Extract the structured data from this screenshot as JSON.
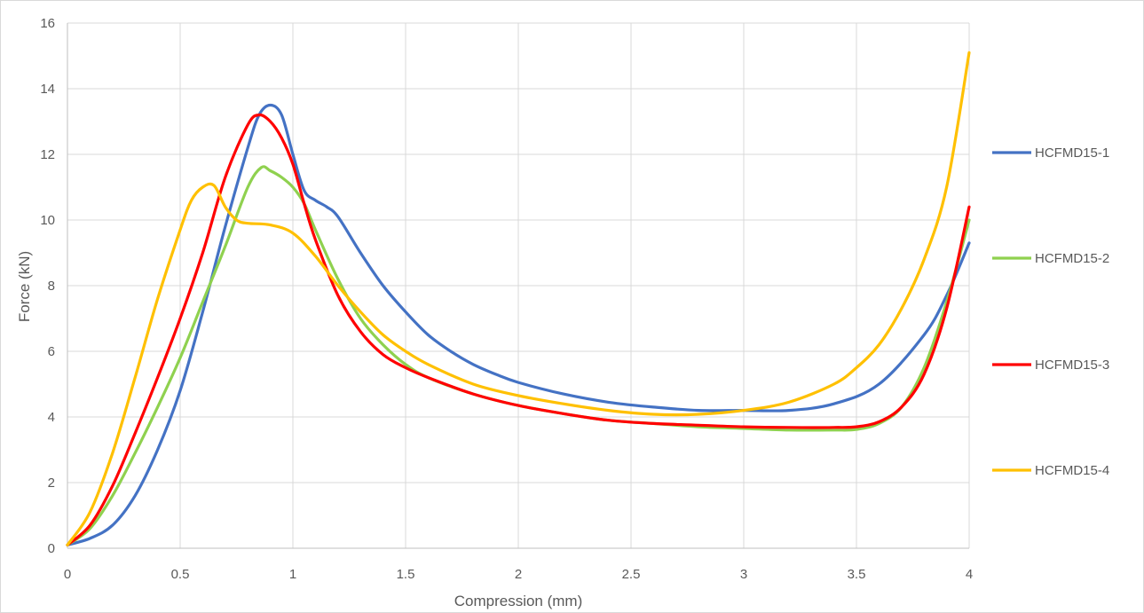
{
  "chart_data": {
    "type": "line",
    "title": "",
    "xlabel": "Compression (mm)",
    "ylabel": "Force (kN)",
    "xlim": [
      0,
      4
    ],
    "ylim": [
      0,
      16
    ],
    "xticks": [
      0,
      0.5,
      1,
      1.5,
      2,
      2.5,
      3,
      3.5,
      4
    ],
    "xtick_labels": [
      "0",
      "0.5",
      "1",
      "1.5",
      "2",
      "2.5",
      "3",
      "3.5",
      "4"
    ],
    "yticks": [
      0,
      2,
      4,
      6,
      8,
      10,
      12,
      14,
      16
    ],
    "ytick_labels": [
      "0",
      "2",
      "4",
      "6",
      "8",
      "10",
      "12",
      "14",
      "16"
    ],
    "grid": "vertical and horizontal major gridlines",
    "legend_position": "right",
    "series": [
      {
        "name": "HCFMD15-1",
        "color": "#4472c4",
        "x": [
          0,
          0.1,
          0.2,
          0.3,
          0.4,
          0.5,
          0.6,
          0.7,
          0.8,
          0.85,
          0.9,
          0.95,
          1.0,
          1.05,
          1.1,
          1.15,
          1.2,
          1.3,
          1.4,
          1.5,
          1.6,
          1.7,
          1.8,
          1.9,
          2.0,
          2.2,
          2.4,
          2.6,
          2.8,
          3.0,
          3.2,
          3.4,
          3.6,
          3.8,
          3.9,
          4.0
        ],
        "y": [
          0.1,
          0.3,
          0.7,
          1.6,
          3.0,
          4.8,
          7.2,
          9.8,
          12.2,
          13.2,
          13.5,
          13.2,
          12.0,
          10.9,
          10.6,
          10.4,
          10.1,
          9.0,
          8.0,
          7.2,
          6.5,
          6.0,
          5.6,
          5.3,
          5.05,
          4.7,
          4.45,
          4.3,
          4.2,
          4.2,
          4.2,
          4.4,
          5.0,
          6.5,
          7.7,
          9.3
        ]
      },
      {
        "name": "HCFMD15-2",
        "color": "#8fd14f",
        "x": [
          0,
          0.1,
          0.2,
          0.3,
          0.4,
          0.5,
          0.6,
          0.7,
          0.8,
          0.86,
          0.9,
          0.95,
          1.0,
          1.05,
          1.1,
          1.2,
          1.3,
          1.4,
          1.5,
          1.6,
          1.8,
          2.0,
          2.2,
          2.4,
          2.6,
          2.8,
          3.0,
          3.2,
          3.4,
          3.5,
          3.6,
          3.7,
          3.8,
          3.9,
          4.0
        ],
        "y": [
          0.1,
          0.6,
          1.6,
          2.9,
          4.3,
          5.8,
          7.5,
          9.2,
          11.0,
          11.6,
          11.5,
          11.3,
          11.0,
          10.5,
          9.7,
          8.2,
          7.0,
          6.2,
          5.6,
          5.2,
          4.7,
          4.35,
          4.1,
          3.9,
          3.8,
          3.7,
          3.65,
          3.6,
          3.6,
          3.62,
          3.8,
          4.3,
          5.5,
          7.5,
          10.0
        ]
      },
      {
        "name": "HCFMD15-3",
        "color": "#ff0000",
        "x": [
          0,
          0.1,
          0.2,
          0.3,
          0.4,
          0.5,
          0.6,
          0.7,
          0.8,
          0.85,
          0.9,
          0.95,
          1.0,
          1.05,
          1.1,
          1.2,
          1.3,
          1.4,
          1.5,
          1.6,
          1.8,
          2.0,
          2.2,
          2.4,
          2.6,
          2.8,
          3.0,
          3.2,
          3.4,
          3.5,
          3.6,
          3.7,
          3.8,
          3.9,
          4.0
        ],
        "y": [
          0.1,
          0.7,
          1.9,
          3.5,
          5.2,
          7.0,
          9.0,
          11.3,
          12.9,
          13.2,
          13.0,
          12.5,
          11.7,
          10.5,
          9.4,
          7.7,
          6.6,
          5.9,
          5.5,
          5.2,
          4.7,
          4.35,
          4.1,
          3.9,
          3.8,
          3.75,
          3.7,
          3.68,
          3.68,
          3.7,
          3.85,
          4.3,
          5.3,
          7.3,
          10.4
        ]
      },
      {
        "name": "HCFMD15-4",
        "color": "#ffc000",
        "x": [
          0,
          0.1,
          0.2,
          0.3,
          0.4,
          0.5,
          0.55,
          0.6,
          0.65,
          0.7,
          0.75,
          0.8,
          0.9,
          1.0,
          1.1,
          1.2,
          1.3,
          1.4,
          1.5,
          1.6,
          1.8,
          2.0,
          2.2,
          2.4,
          2.6,
          2.8,
          3.0,
          3.2,
          3.4,
          3.5,
          3.6,
          3.7,
          3.8,
          3.9,
          4.0
        ],
        "y": [
          0.1,
          1.1,
          2.9,
          5.2,
          7.6,
          9.7,
          10.6,
          11.0,
          11.05,
          10.4,
          10.0,
          9.9,
          9.85,
          9.6,
          8.9,
          8.0,
          7.2,
          6.5,
          6.0,
          5.6,
          5.0,
          4.65,
          4.4,
          4.2,
          4.08,
          4.08,
          4.2,
          4.45,
          5.0,
          5.5,
          6.2,
          7.3,
          8.8,
          11.0,
          15.1
        ]
      }
    ]
  }
}
